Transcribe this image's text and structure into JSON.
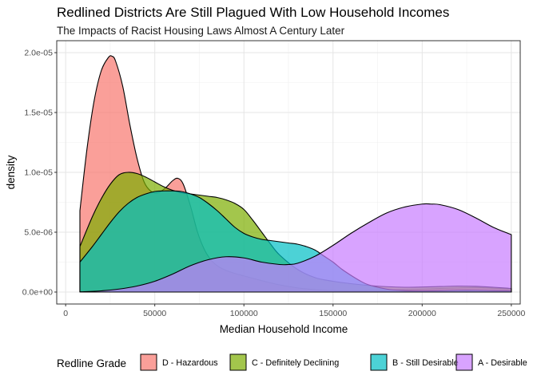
{
  "chart_data": {
    "type": "area",
    "title": "Redlined Districts Are Still Plagued With Low Household Incomes",
    "subtitle": "The Impacts of Racist Housing Laws Almost A Century Later",
    "xlabel": "Median Household Income",
    "ylabel": "density",
    "xlim": [
      -5000,
      255000
    ],
    "ylim": [
      -1e-06,
      2.1e-05
    ],
    "x_ticks": [
      0,
      50000,
      100000,
      150000,
      200000,
      250000
    ],
    "x_tick_labels": [
      "0",
      "50000",
      "100000",
      "150000",
      "200000",
      "250000"
    ],
    "y_ticks": [
      0,
      5e-06,
      1e-05,
      1.5e-05,
      2e-05
    ],
    "y_tick_labels": [
      "0.0e+00",
      "5.0e-06",
      "1.0e-05",
      "1.5e-05",
      "2.0e-05"
    ],
    "grid": true,
    "legend_title": "Redline Grade",
    "legend_position": "bottom",
    "series": [
      {
        "name": "D - Hazardous",
        "color": "#F8766D",
        "x": [
          8000,
          12000,
          16000,
          20000,
          24000,
          26000,
          28000,
          32000,
          36000,
          40000,
          44000,
          48000,
          52000,
          56000,
          60000,
          63000,
          66000,
          70000,
          74000,
          78000,
          82000,
          86000,
          90000,
          95000,
          100000,
          110000,
          120000,
          130000,
          140000,
          150000,
          160000,
          170000,
          180000,
          190000,
          200000,
          210000,
          220000,
          230000,
          240000,
          250000
        ],
        "y": [
          6.8e-06,
          1.2e-05,
          1.6e-05,
          1.85e-05,
          1.96e-05,
          1.97e-05,
          1.93e-05,
          1.72e-05,
          1.4e-05,
          1.12e-05,
          9.2e-06,
          8.4e-06,
          8.3e-06,
          8.7e-06,
          9.3e-06,
          9.5e-06,
          9e-06,
          7.2e-06,
          5e-06,
          3.5e-06,
          2.6e-06,
          2.1e-06,
          1.8e-06,
          1.55e-06,
          1.35e-06,
          9.5e-07,
          6e-07,
          3.5e-07,
          2e-07,
          1.2e-07,
          1e-07,
          1.2e-07,
          1.6e-07,
          2e-07,
          2.4e-07,
          3e-07,
          3.5e-07,
          3.8e-07,
          3.2e-07,
          2.5e-07
        ]
      },
      {
        "name": "C - Definitely Declining",
        "color": "#7CAE00",
        "x": [
          8000,
          15000,
          20000,
          25000,
          30000,
          35000,
          40000,
          45000,
          50000,
          55000,
          60000,
          65000,
          70000,
          75000,
          80000,
          85000,
          90000,
          95000,
          100000,
          105000,
          110000,
          115000,
          120000,
          130000,
          140000,
          150000,
          160000,
          170000,
          180000,
          190000,
          200000,
          210000,
          220000,
          230000,
          240000,
          250000
        ],
        "y": [
          3.8e-06,
          6.3e-06,
          7.8e-06,
          9e-06,
          9.8e-06,
          1e-05,
          9.9e-06,
          9.6e-06,
          9.2e-06,
          8.8e-06,
          8.5e-06,
          8.3e-06,
          8.2e-06,
          8.1e-06,
          8e-06,
          7.9e-06,
          7.7e-06,
          7.4e-06,
          6.9e-06,
          6e-06,
          5e-06,
          4e-06,
          3.1e-06,
          1.9e-06,
          1.2e-06,
          9e-07,
          7e-07,
          5.5e-07,
          4.5e-07,
          4e-07,
          4.2e-07,
          4.6e-07,
          5e-07,
          4.8e-07,
          4e-07,
          3e-07
        ]
      },
      {
        "name": "B - Still Desirable",
        "color": "#00BFC4",
        "x": [
          8000,
          15000,
          20000,
          25000,
          30000,
          35000,
          40000,
          45000,
          50000,
          55000,
          60000,
          65000,
          70000,
          75000,
          80000,
          85000,
          90000,
          95000,
          100000,
          105000,
          110000,
          115000,
          120000,
          125000,
          130000,
          135000,
          140000,
          145000,
          150000,
          155000,
          160000,
          165000,
          170000,
          180000,
          190000,
          200000,
          210000,
          220000,
          230000,
          240000,
          250000
        ],
        "y": [
          2.5e-06,
          3.8e-06,
          4.8e-06,
          5.8e-06,
          6.7e-06,
          7.4e-06,
          7.9e-06,
          8.2e-06,
          8.4e-06,
          8.45e-06,
          8.45e-06,
          8.4e-06,
          8.2e-06,
          7.9e-06,
          7.4e-06,
          6.8e-06,
          6.1e-06,
          5.4e-06,
          4.9e-06,
          4.6e-06,
          4.4e-06,
          4.3e-06,
          4.2e-06,
          4.1e-06,
          4e-06,
          3.8e-06,
          3.5e-06,
          3e-06,
          2.5e-06,
          1.9e-06,
          1.4e-06,
          9.5e-07,
          6e-07,
          2.5e-07,
          1.2e-07,
          1e-07,
          1.2e-07,
          1.5e-07,
          1.5e-07,
          1.2e-07,
          1e-07
        ]
      },
      {
        "name": "A - Desirable",
        "color": "#C77CFF",
        "x": [
          8000,
          20000,
          30000,
          40000,
          50000,
          60000,
          70000,
          80000,
          90000,
          100000,
          110000,
          120000,
          125000,
          130000,
          140000,
          150000,
          160000,
          170000,
          180000,
          190000,
          200000,
          205000,
          210000,
          220000,
          230000,
          240000,
          250000
        ],
        "y": [
          2e-08,
          1e-07,
          2.5e-07,
          5e-07,
          9e-07,
          1.5e-06,
          2.2e-06,
          2.7e-06,
          2.95e-06,
          2.85e-06,
          2.5e-06,
          2.3e-06,
          2.3e-06,
          2.4e-06,
          3e-06,
          3.9e-06,
          4.9e-06,
          5.8e-06,
          6.6e-06,
          7.1e-06,
          7.35e-06,
          7.35e-06,
          7.3e-06,
          6.9e-06,
          6.2e-06,
          5.4e-06,
          4.8e-06
        ]
      }
    ]
  }
}
